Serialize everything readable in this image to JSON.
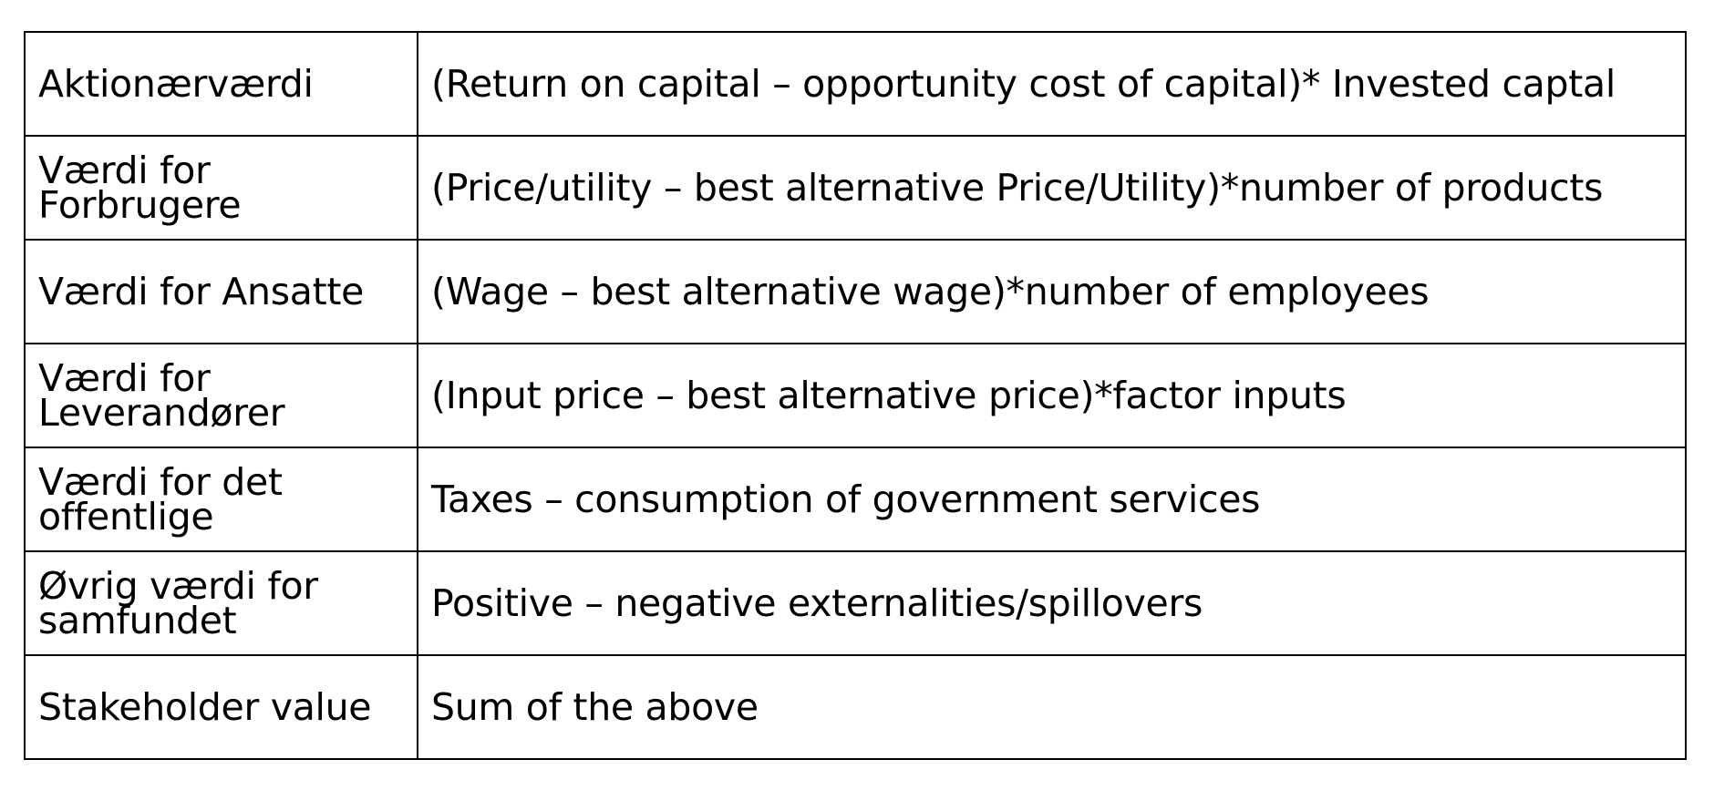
{
  "table": {
    "rows": [
      {
        "label": "Aktionærværdi",
        "formula": "(Return on capital – opportunity cost of capital)* Invested captal",
        "wrap": false
      },
      {
        "label": "Værdi for Forbrugere",
        "formula": "(Price/utility – best alternative Price/Utility)*number of products",
        "wrap": true
      },
      {
        "label": "Værdi for Ansatte",
        "formula": "(Wage – best alternative wage)*number of employees",
        "wrap": false
      },
      {
        "label": "Værdi for Leverandører",
        "formula": "(Input price – best alternative price)*factor inputs",
        "wrap": true
      },
      {
        "label": "Værdi for det offentlige",
        "formula": "Taxes – consumption of government services",
        "wrap": true
      },
      {
        "label": "Øvrig værdi for samfundet",
        "formula": "Positive – negative externalities/spillovers",
        "wrap": true
      },
      {
        "label": "Stakeholder value",
        "formula": "Sum of the above",
        "wrap": false
      }
    ]
  }
}
